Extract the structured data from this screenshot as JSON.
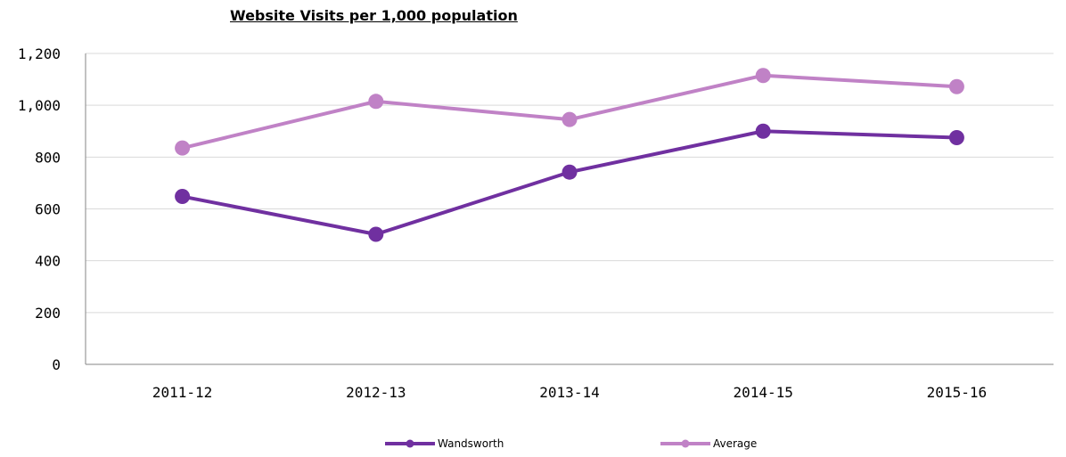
{
  "chart_data": {
    "type": "line",
    "title": "Website Visits per 1,000 population",
    "categories": [
      "2011-12",
      "2012-13",
      "2013-14",
      "2014-15",
      "2015-16"
    ],
    "series": [
      {
        "name": "Wandsworth",
        "values": [
          648,
          502,
          742,
          900,
          875
        ],
        "color": "#7030a0"
      },
      {
        "name": "Average",
        "values": [
          835,
          1015,
          945,
          1115,
          1072
        ],
        "color": "#c082c6"
      }
    ],
    "ylim": [
      0,
      1200
    ],
    "yticks": [
      0,
      200,
      400,
      600,
      800,
      1000,
      1200
    ],
    "ytick_labels": [
      "0",
      "200",
      "400",
      "600",
      "800",
      "1,000",
      "1,200"
    ],
    "grid": true,
    "legend_position": "bottom"
  }
}
